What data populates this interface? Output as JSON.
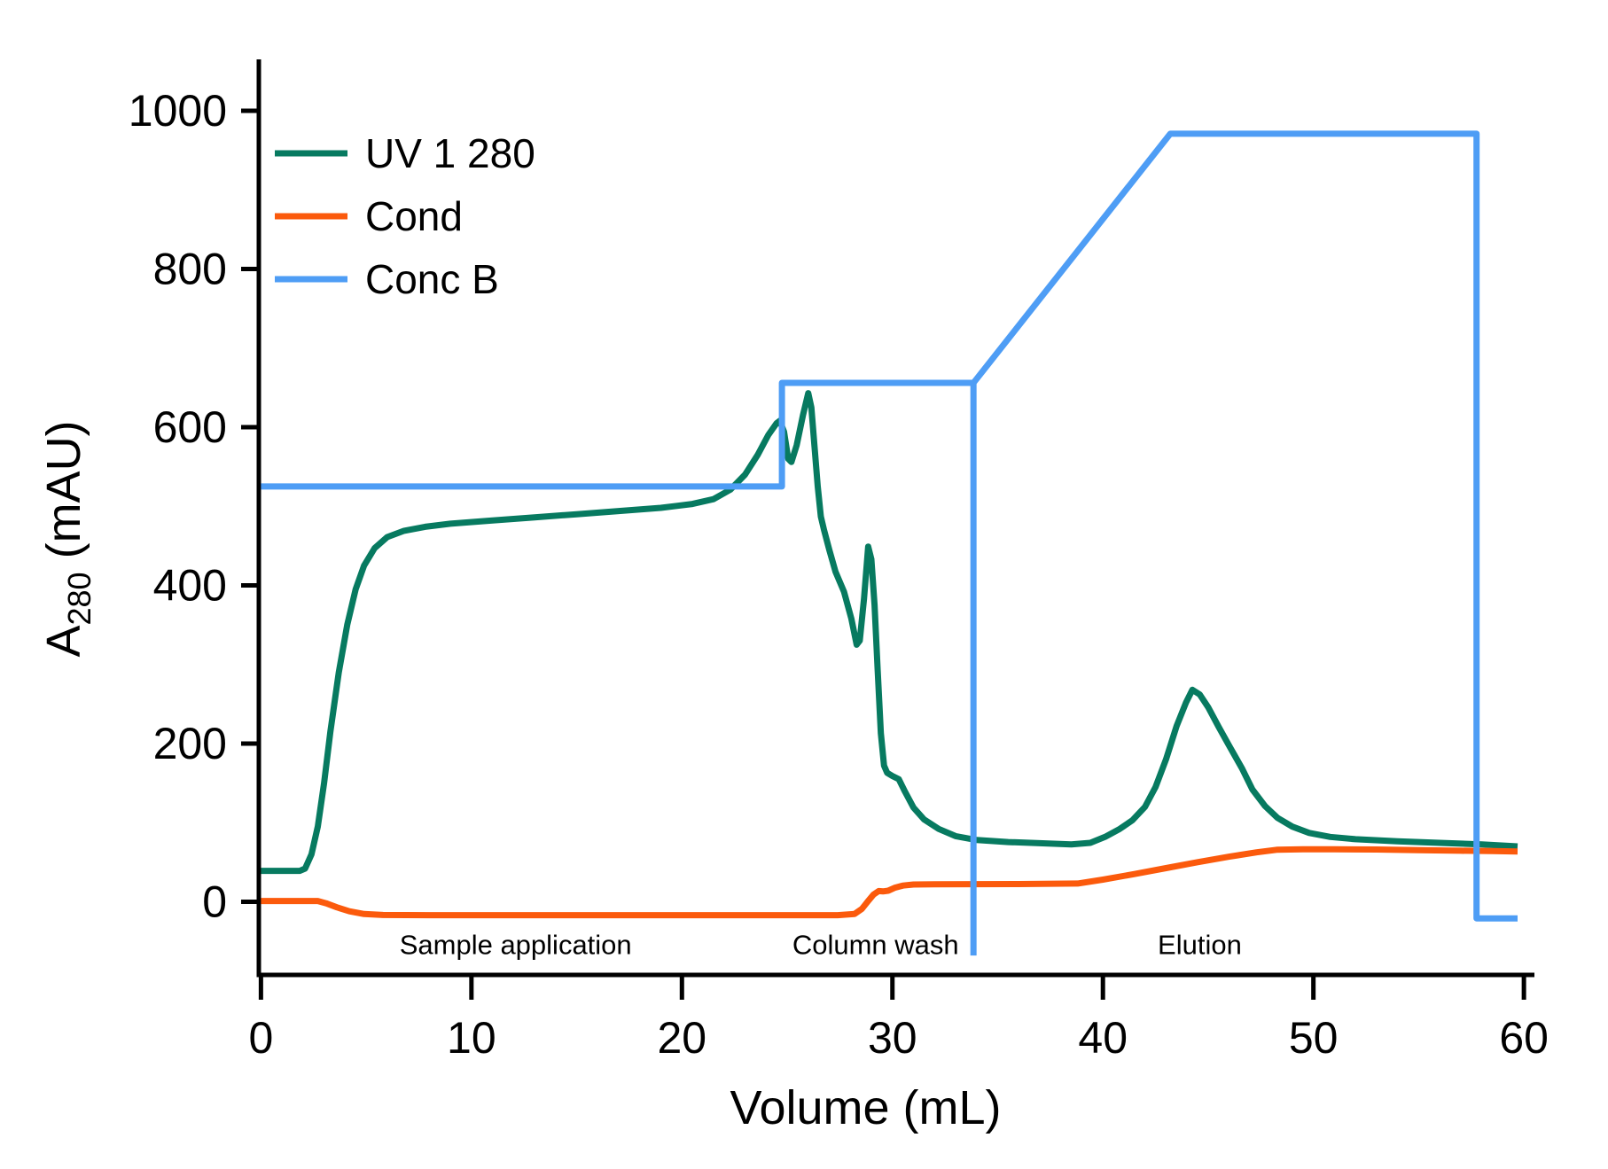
{
  "chart_data": {
    "type": "line",
    "title": "",
    "xlabel": "Volume (mL)",
    "ylabel": {
      "base": "A",
      "sub": "280",
      "rest": " (mAU)"
    },
    "xlim": [
      -0.1,
      60.5
    ],
    "ylim": [
      -92.5,
      1065
    ],
    "x_ticks": [
      0,
      10,
      20,
      30,
      40,
      50,
      60
    ],
    "y_ticks": [
      0,
      200,
      400,
      600,
      800,
      1000
    ],
    "grid": false,
    "legend_position": "upper-left-inside",
    "axis_color": "#000000",
    "series": [
      {
        "name": "UV 1 280",
        "color": "#077A60",
        "width": 7,
        "points": [
          [
            0,
            39
          ],
          [
            1.85,
            39
          ],
          [
            2.1,
            42
          ],
          [
            2.4,
            60
          ],
          [
            2.7,
            95
          ],
          [
            3.0,
            150
          ],
          [
            3.3,
            215
          ],
          [
            3.7,
            290
          ],
          [
            4.1,
            350
          ],
          [
            4.5,
            395
          ],
          [
            4.9,
            425
          ],
          [
            5.4,
            447
          ],
          [
            6.0,
            461
          ],
          [
            6.8,
            469
          ],
          [
            7.8,
            474
          ],
          [
            9,
            478
          ],
          [
            11,
            482
          ],
          [
            13,
            486
          ],
          [
            15,
            490
          ],
          [
            17,
            494
          ],
          [
            19,
            498
          ],
          [
            20.5,
            503
          ],
          [
            21.5,
            509
          ],
          [
            22.3,
            521
          ],
          [
            23.0,
            540
          ],
          [
            23.6,
            565
          ],
          [
            24.1,
            590
          ],
          [
            24.5,
            605
          ],
          [
            24.65,
            608
          ],
          [
            24.85,
            594
          ],
          [
            25.05,
            560
          ],
          [
            25.2,
            556
          ],
          [
            25.45,
            577
          ],
          [
            25.75,
            615
          ],
          [
            26.0,
            643
          ],
          [
            26.15,
            625
          ],
          [
            26.3,
            575
          ],
          [
            26.45,
            525
          ],
          [
            26.6,
            487
          ],
          [
            26.75,
            470
          ],
          [
            27.0,
            445
          ],
          [
            27.3,
            417
          ],
          [
            27.7,
            392
          ],
          [
            28.05,
            358
          ],
          [
            28.3,
            325
          ],
          [
            28.45,
            330
          ],
          [
            28.65,
            383
          ],
          [
            28.85,
            449
          ],
          [
            29.0,
            433
          ],
          [
            29.15,
            375
          ],
          [
            29.3,
            293
          ],
          [
            29.45,
            213
          ],
          [
            29.6,
            172
          ],
          [
            29.75,
            163
          ],
          [
            30.0,
            159
          ],
          [
            30.3,
            155
          ],
          [
            30.6,
            139
          ],
          [
            31.0,
            119
          ],
          [
            31.5,
            104
          ],
          [
            32.2,
            92
          ],
          [
            33.0,
            83
          ],
          [
            34.0,
            78
          ],
          [
            35.5,
            75.5
          ],
          [
            37.0,
            74
          ],
          [
            38.5,
            72.5
          ],
          [
            39.4,
            74.5
          ],
          [
            40.1,
            82
          ],
          [
            40.8,
            92
          ],
          [
            41.4,
            103
          ],
          [
            42.0,
            120
          ],
          [
            42.5,
            145
          ],
          [
            43.0,
            180
          ],
          [
            43.5,
            222
          ],
          [
            43.95,
            252
          ],
          [
            44.25,
            268
          ],
          [
            44.6,
            262
          ],
          [
            45.0,
            246
          ],
          [
            45.5,
            221
          ],
          [
            46.0,
            197
          ],
          [
            46.6,
            169
          ],
          [
            47.1,
            142
          ],
          [
            47.7,
            121
          ],
          [
            48.3,
            106
          ],
          [
            49.0,
            95
          ],
          [
            49.8,
            87
          ],
          [
            50.8,
            82
          ],
          [
            52,
            79
          ],
          [
            54,
            76.5
          ],
          [
            56,
            74.5
          ],
          [
            58,
            72.5
          ],
          [
            59.7,
            70
          ]
        ]
      },
      {
        "name": "Cond",
        "color": "#FB5A0C",
        "width": 7,
        "points": [
          [
            0,
            1
          ],
          [
            2.7,
            1
          ],
          [
            3.1,
            -2
          ],
          [
            3.6,
            -7
          ],
          [
            4.2,
            -12
          ],
          [
            4.9,
            -15.5
          ],
          [
            5.8,
            -16.8
          ],
          [
            8,
            -17
          ],
          [
            27.4,
            -17
          ],
          [
            28.2,
            -15.5
          ],
          [
            28.55,
            -9
          ],
          [
            28.85,
            1
          ],
          [
            29.1,
            9
          ],
          [
            29.35,
            13.5
          ],
          [
            29.55,
            13
          ],
          [
            29.8,
            14
          ],
          [
            30.1,
            17.5
          ],
          [
            30.5,
            20.5
          ],
          [
            31.0,
            21.8
          ],
          [
            32,
            22
          ],
          [
            36,
            22.3
          ],
          [
            38.8,
            23
          ],
          [
            40.0,
            28
          ],
          [
            41.5,
            35
          ],
          [
            43.0,
            42.5
          ],
          [
            44.5,
            50
          ],
          [
            46.0,
            57
          ],
          [
            47.3,
            62.5
          ],
          [
            48.3,
            65.8
          ],
          [
            49.5,
            66.3
          ],
          [
            51,
            66.3
          ],
          [
            53,
            66
          ],
          [
            55,
            65.3
          ],
          [
            57,
            64.5
          ],
          [
            58.5,
            64
          ],
          [
            59.7,
            63.5
          ]
        ]
      },
      {
        "name": "Conc B",
        "color": "#4E9DF5",
        "width": 7,
        "points": [
          [
            0,
            525
          ],
          [
            24.75,
            525
          ],
          [
            24.75,
            656
          ],
          [
            33.85,
            656
          ],
          [
            43.2,
            971
          ],
          [
            57.75,
            971
          ],
          [
            57.75,
            -21
          ],
          [
            59.7,
            -21
          ]
        ],
        "spurs": [
          {
            "x": 33.85,
            "from": 656,
            "to": -68
          }
        ]
      }
    ],
    "annotations": [
      {
        "text": "Sample application",
        "x": 12.1,
        "y": -54
      },
      {
        "text": "Column wash",
        "x": 29.2,
        "y": -54
      },
      {
        "text": "Elution",
        "x": 44.6,
        "y": -54
      }
    ],
    "legend": [
      {
        "label": "UV 1 280",
        "color": "#077A60"
      },
      {
        "label": "Cond",
        "color": "#FB5A0C"
      },
      {
        "label": "Conc B",
        "color": "#4E9DF5"
      }
    ]
  }
}
